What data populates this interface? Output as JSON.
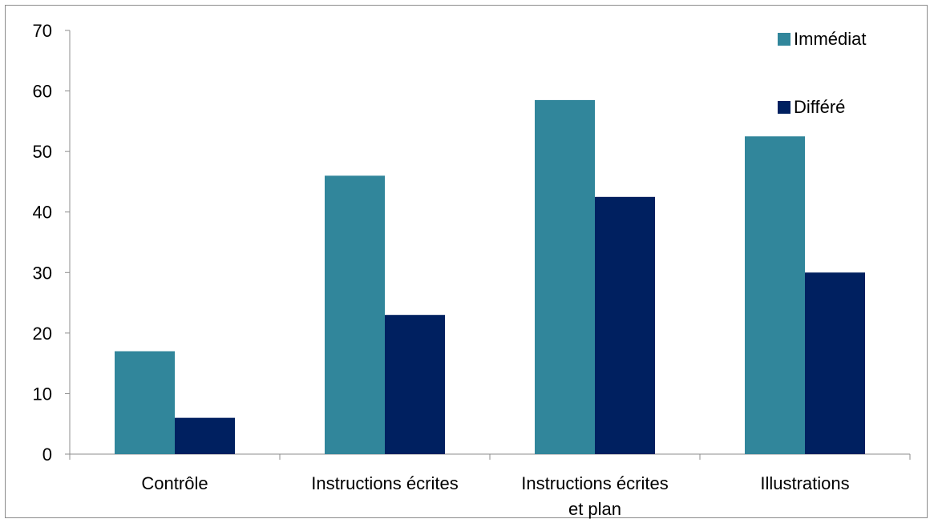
{
  "chart_data": {
    "type": "bar",
    "categories": [
      [
        "Contrôle"
      ],
      [
        "Instructions écrites"
      ],
      [
        "Instructions écrites",
        "et plan"
      ],
      [
        "Illustrations"
      ]
    ],
    "series": [
      {
        "name": "Immédiat",
        "values": [
          17,
          46,
          58.5,
          52.5
        ],
        "color": "#31869b"
      },
      {
        "name": "Différé",
        "values": [
          6,
          23,
          42.5,
          30
        ],
        "color": "#002060"
      }
    ],
    "ylim": [
      0,
      70
    ],
    "yticks": [
      0,
      10,
      20,
      30,
      40,
      50,
      60,
      70
    ],
    "grid": false,
    "legend_position": "top-right",
    "title": "",
    "xlabel": "",
    "ylabel": ""
  }
}
